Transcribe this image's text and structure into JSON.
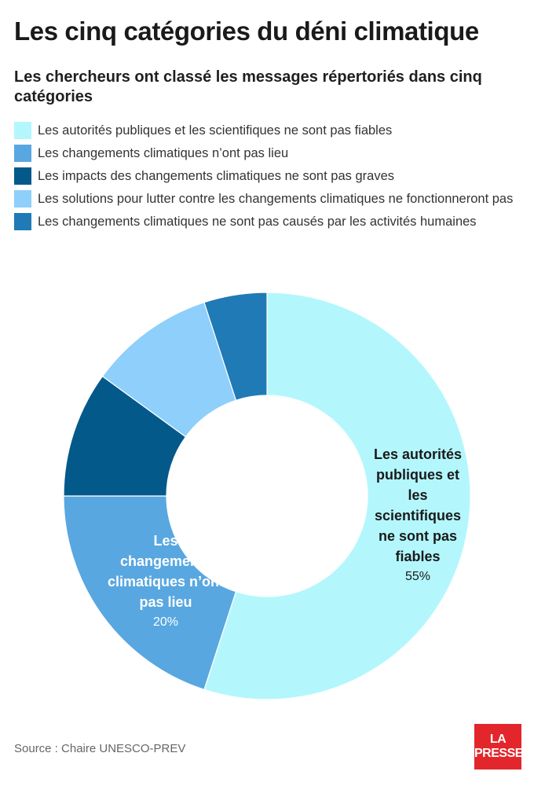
{
  "title": "Les cinq catégories du déni climatique",
  "subtitle": "Les chercheurs ont classé les messages répertoriés dans cinq catégories",
  "source": "Source : Chaire UNESCO-PREV",
  "logo": {
    "line1": "LA",
    "line2": "PRESSE"
  },
  "chart_data": {
    "type": "pie",
    "variant": "donut",
    "legend_position": "top",
    "series": [
      {
        "name": "Les autorités publiques et les scientifiques ne sont pas fiables",
        "value": 55,
        "color": "#b3f7fd",
        "label_lines": [
          "Les autorités",
          "publiques et",
          "les",
          "scientifiques",
          "ne sont pas",
          "fiables"
        ],
        "value_label": "55%"
      },
      {
        "name": "Les changements climatiques n’ont pas lieu",
        "value": 20,
        "color": "#58a7e0",
        "label_lines": [
          "Les",
          "changements",
          "climatiques n’ont",
          "pas lieu"
        ],
        "value_label": "20%"
      },
      {
        "name": "Les impacts des changements climatiques ne sont pas graves",
        "value": 10,
        "color": "#04598b"
      },
      {
        "name": "Les solutions pour lutter contre les changements climatiques ne fonctionneront pas",
        "value": 10,
        "color": "#8ecffb"
      },
      {
        "name": "Les changements climatiques ne sont pas causés par les activités humaines",
        "value": 5,
        "color": "#1f7ab6"
      }
    ]
  }
}
